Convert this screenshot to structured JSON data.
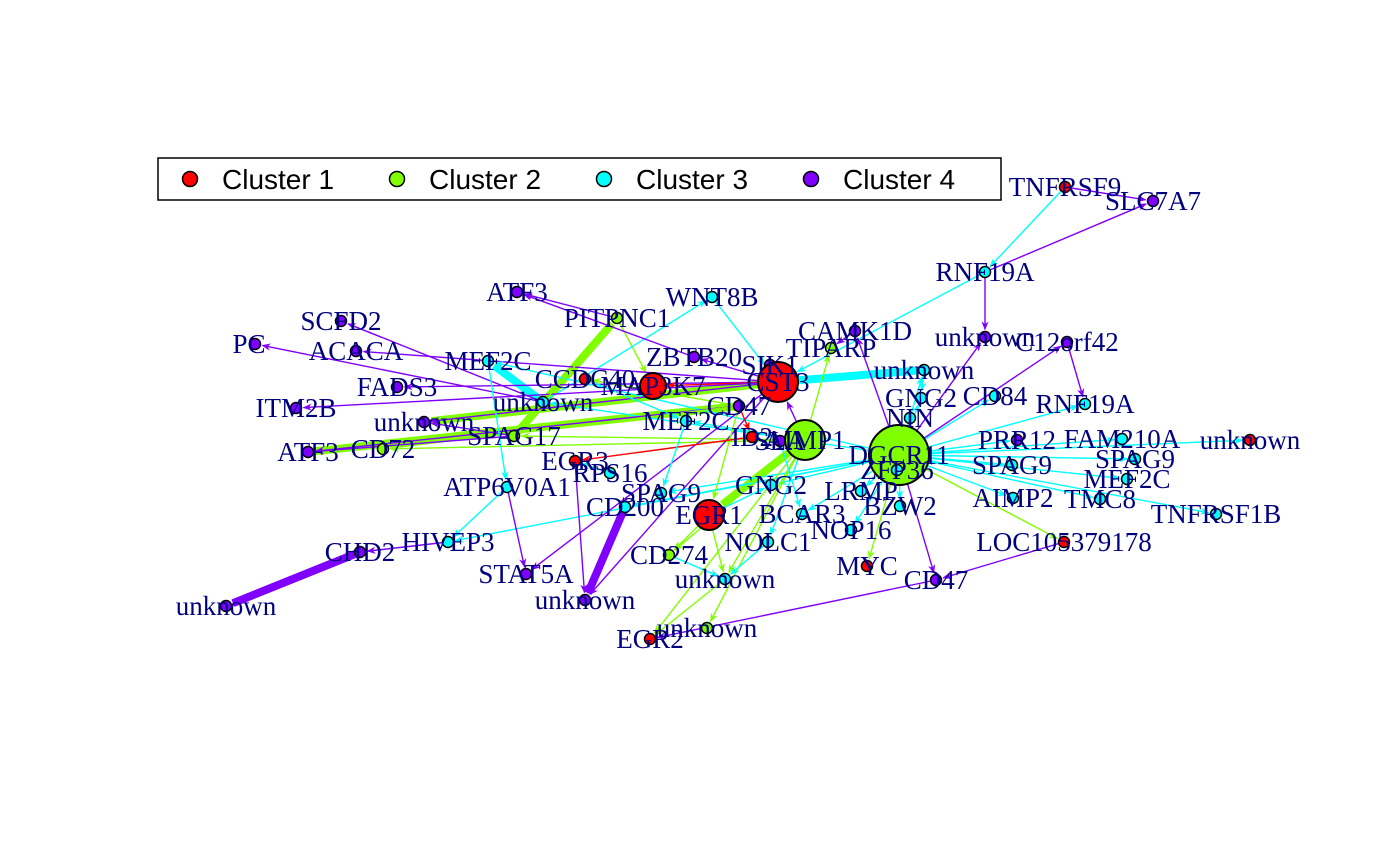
{
  "colors": {
    "cluster1": "#ff0000",
    "cluster2": "#80ff00",
    "cluster3": "#00ffff",
    "cluster4": "#8000ff",
    "label": "#00007f",
    "legend_border": "#000000"
  },
  "legend": [
    {
      "label": "Cluster 1",
      "color": "#ff0000"
    },
    {
      "label": "Cluster 2",
      "color": "#80ff00"
    },
    {
      "label": "Cluster 3",
      "color": "#00ffff"
    },
    {
      "label": "Cluster 4",
      "color": "#8000ff"
    }
  ],
  "nodes": [
    {
      "id": "TNFRSF9",
      "label": "TNFRSF9",
      "cluster": 1
    },
    {
      "id": "SLC7A7",
      "label": "SLC7A7",
      "cluster": 4
    },
    {
      "id": "RNF19A_a",
      "label": "RNF19A",
      "cluster": 3
    },
    {
      "id": "ATF3_a",
      "label": "ATF3",
      "cluster": 4
    },
    {
      "id": "WNT8B",
      "label": "WNT8B",
      "cluster": 3
    },
    {
      "id": "PITPNC1",
      "label": "PITPNC1",
      "cluster": 2
    },
    {
      "id": "SCFD2",
      "label": "SCFD2",
      "cluster": 4
    },
    {
      "id": "PCA",
      "label": "PC",
      "cluster": 4
    },
    {
      "id": "ACACA",
      "label": "ACACA",
      "cluster": 4
    },
    {
      "id": "CAMK1D",
      "label": "CAMK1D",
      "cluster": 4
    },
    {
      "id": "unknown_a",
      "label": "unknown",
      "cluster": 4
    },
    {
      "id": "C12orf42",
      "label": "C12orf42",
      "cluster": 4
    },
    {
      "id": "MEF2C_a",
      "label": "MEF2C",
      "cluster": 3
    },
    {
      "id": "ZBTB20",
      "label": "ZBTB20",
      "cluster": 4
    },
    {
      "id": "SIK1",
      "label": "SIK1",
      "cluster": 4
    },
    {
      "id": "TIPARP",
      "label": "TIPARP",
      "cluster": 2
    },
    {
      "id": "CCDC40",
      "label": "CCDC40",
      "cluster": 1
    },
    {
      "id": "MAP3K7",
      "label": "MAP3K7",
      "cluster": 1
    },
    {
      "id": "CST3",
      "label": "CST3",
      "cluster": 1
    },
    {
      "id": "unknown_b",
      "label": "unknown",
      "cluster": 3
    },
    {
      "id": "FADS3",
      "label": "FADS3",
      "cluster": 4
    },
    {
      "id": "unknown_c",
      "label": "unknown",
      "cluster": 3
    },
    {
      "id": "GNG2_a",
      "label": "GNG2",
      "cluster": 3
    },
    {
      "id": "CD84",
      "label": "CD84",
      "cluster": 3
    },
    {
      "id": "RNF19A_b",
      "label": "RNF19A",
      "cluster": 3
    },
    {
      "id": "ITM2B",
      "label": "ITM2B",
      "cluster": 4
    },
    {
      "id": "unknown_d",
      "label": "unknown",
      "cluster": 4
    },
    {
      "id": "MEF2C_b",
      "label": "MEF2C",
      "cluster": 3
    },
    {
      "id": "CD47_a",
      "label": "CD47",
      "cluster": 4
    },
    {
      "id": "NIN",
      "label": "NIN",
      "cluster": 3
    },
    {
      "id": "SPAG17",
      "label": "SPAG17",
      "cluster": 2
    },
    {
      "id": "ID2",
      "label": "ID2",
      "cluster": 1
    },
    {
      "id": "SLA",
      "label": "SLA",
      "cluster": 4
    },
    {
      "id": "AIMP1",
      "label": "AIMP1",
      "cluster": 2
    },
    {
      "id": "DGCR11",
      "label": "DGCR11",
      "cluster": 2
    },
    {
      "id": "ATF3_b",
      "label": "ATF3",
      "cluster": 4
    },
    {
      "id": "CD72",
      "label": "CD72",
      "cluster": 2
    },
    {
      "id": "PRR12",
      "label": "PRR12",
      "cluster": 4
    },
    {
      "id": "FAM210A",
      "label": "FAM210A",
      "cluster": 3
    },
    {
      "id": "unknown_e",
      "label": "unknown",
      "cluster": 1
    },
    {
      "id": "EGR3",
      "label": "EGR3",
      "cluster": 1
    },
    {
      "id": "RPS16",
      "label": "RPS16",
      "cluster": 3
    },
    {
      "id": "ZFP36",
      "label": "ZFP36",
      "cluster": 3
    },
    {
      "id": "SPAG9_a",
      "label": "SPAG9",
      "cluster": 3
    },
    {
      "id": "SPAG9_b",
      "label": "SPAG9",
      "cluster": 3
    },
    {
      "id": "ATP6V0A1",
      "label": "ATP6V0A1",
      "cluster": 3
    },
    {
      "id": "SPAG9_c",
      "label": "SPAG9",
      "cluster": 3
    },
    {
      "id": "GNG2_b",
      "label": "GNG2",
      "cluster": 3
    },
    {
      "id": "LRMP",
      "label": "LRMP",
      "cluster": 3
    },
    {
      "id": "MEF2C_c",
      "label": "MEF2C",
      "cluster": 3
    },
    {
      "id": "CD200",
      "label": "CD200",
      "cluster": 3
    },
    {
      "id": "EGR1",
      "label": "EGR1",
      "cluster": 1
    },
    {
      "id": "BCAR3",
      "label": "BCAR3",
      "cluster": 3
    },
    {
      "id": "BZW2",
      "label": "BZW2",
      "cluster": 3
    },
    {
      "id": "AIMP2",
      "label": "AIMP2",
      "cluster": 3
    },
    {
      "id": "TMC8",
      "label": "TMC8",
      "cluster": 3
    },
    {
      "id": "TNFRSF1B",
      "label": "TNFRSF1B",
      "cluster": 3
    },
    {
      "id": "HIVEP3",
      "label": "HIVEP3",
      "cluster": 3
    },
    {
      "id": "NOP16",
      "label": "NOP16",
      "cluster": 3
    },
    {
      "id": "NOLC1",
      "label": "NOLC1",
      "cluster": 3
    },
    {
      "id": "LOC105379178",
      "label": "LOC105379178",
      "cluster": 1
    },
    {
      "id": "CHD2",
      "label": "CHD2",
      "cluster": 4
    },
    {
      "id": "CD274",
      "label": "CD274",
      "cluster": 2
    },
    {
      "id": "MYC",
      "label": "MYC",
      "cluster": 1
    },
    {
      "id": "STAT5A",
      "label": "STAT5A",
      "cluster": 4
    },
    {
      "id": "unknown_f",
      "label": "unknown",
      "cluster": 3
    },
    {
      "id": "CD47_b",
      "label": "CD47",
      "cluster": 4
    },
    {
      "id": "unknown_g",
      "label": "unknown",
      "cluster": 4
    },
    {
      "id": "unknown_h",
      "label": "unknown",
      "cluster": 4
    },
    {
      "id": "unknown_i",
      "label": "unknown",
      "cluster": 2
    },
    {
      "id": "EGR2",
      "label": "EGR2",
      "cluster": 1
    }
  ],
  "edges": [
    {
      "from": "TNFRSF9",
      "to": "RNF19A_a",
      "cluster": 3
    },
    {
      "from": "RNF19A_a",
      "to": "SLC7A7",
      "cluster": 4
    },
    {
      "from": "RNF19A_a",
      "to": "unknown_a",
      "cluster": 4
    },
    {
      "from": "C12orf42",
      "to": "RNF19A_b",
      "cluster": 4
    },
    {
      "from": "RNF19A_a",
      "to": "CST3",
      "cluster": 3
    },
    {
      "from": "PITPNC1",
      "to": "ATF3_a",
      "cluster": 4
    },
    {
      "from": "PITPNC1",
      "to": "MAP3K7",
      "cluster": 2
    },
    {
      "from": "WNT8B",
      "to": "CST3",
      "cluster": 3
    },
    {
      "from": "unknown_b",
      "to": "WNT8B",
      "cluster": 3
    },
    {
      "from": "unknown_b",
      "to": "SCFD2",
      "cluster": 4
    },
    {
      "from": "CST3",
      "to": "ACACA",
      "cluster": 4
    },
    {
      "from": "unknown_b",
      "to": "PCA",
      "cluster": 4
    },
    {
      "from": "CST3",
      "to": "FADS3",
      "cluster": 4
    },
    {
      "from": "DGCR11",
      "to": "unknown_b",
      "cluster": 3
    },
    {
      "from": "DGCR11",
      "to": "MEF2C_a",
      "cluster": 3
    },
    {
      "from": "DGCR11",
      "to": "CAMK1D",
      "cluster": 4
    },
    {
      "from": "DGCR11",
      "to": "unknown_a",
      "cluster": 4
    },
    {
      "from": "DGCR11",
      "to": "C12orf42",
      "cluster": 4
    },
    {
      "from": "DGCR11",
      "to": "unknown_c",
      "cluster": 3
    },
    {
      "from": "DGCR11",
      "to": "GNG2_a",
      "cluster": 3
    },
    {
      "from": "DGCR11",
      "to": "CD84",
      "cluster": 3
    },
    {
      "from": "DGCR11",
      "to": "RNF19A_b",
      "cluster": 3
    },
    {
      "from": "DGCR11",
      "to": "NIN",
      "cluster": 3
    },
    {
      "from": "DGCR11",
      "to": "PRR12",
      "cluster": 3
    },
    {
      "from": "DGCR11",
      "to": "FAM210A",
      "cluster": 3
    },
    {
      "from": "DGCR11",
      "to": "unknown_e",
      "cluster": 3
    },
    {
      "from": "DGCR11",
      "to": "SPAG9_b",
      "cluster": 3
    },
    {
      "from": "DGCR11",
      "to": "SPAG9_c",
      "cluster": 3
    },
    {
      "from": "DGCR11",
      "to": "MEF2C_c",
      "cluster": 3
    },
    {
      "from": "DGCR11",
      "to": "TMC8",
      "cluster": 3
    },
    {
      "from": "DGCR11",
      "to": "TNFRSF1B",
      "cluster": 3
    },
    {
      "from": "DGCR11",
      "to": "AIMP2",
      "cluster": 3
    },
    {
      "from": "DGCR11",
      "to": "LOC105379178",
      "cluster": 2
    },
    {
      "from": "DGCR11",
      "to": "CD47_b",
      "cluster": 4
    },
    {
      "from": "DGCR11",
      "to": "BZW2",
      "cluster": 3
    },
    {
      "from": "DGCR11",
      "to": "LRMP",
      "cluster": 3
    },
    {
      "from": "DGCR11",
      "to": "GNG2_b",
      "cluster": 3
    },
    {
      "from": "DGCR11",
      "to": "BCAR3",
      "cluster": 3
    },
    {
      "from": "DGCR11",
      "to": "NOP16",
      "cluster": 3
    },
    {
      "from": "DGCR11",
      "to": "ZFP36",
      "cluster": 3
    },
    {
      "from": "DGCR11",
      "to": "SPAG9_a",
      "cluster": 3
    },
    {
      "from": "DGCR11",
      "to": "CD200",
      "cluster": 3
    },
    {
      "from": "DGCR11",
      "to": "HIVEP3",
      "cluster": 3
    },
    {
      "from": "DGCR11",
      "to": "MYC",
      "cluster": 2
    },
    {
      "from": "AIMP1",
      "to": "TIPARP",
      "cluster": 2
    },
    {
      "from": "AIMP1",
      "to": "CD274",
      "cluster": 2
    },
    {
      "from": "AIMP1",
      "to": "unknown_f",
      "cluster": 2
    },
    {
      "from": "AIMP1",
      "to": "unknown_i",
      "cluster": 2
    },
    {
      "from": "AIMP1",
      "to": "EGR2",
      "cluster": 2
    },
    {
      "from": "AIMP1",
      "to": "SPAG17",
      "cluster": 2
    },
    {
      "from": "AIMP1",
      "to": "CD72",
      "cluster": 2
    },
    {
      "from": "AIMP1",
      "to": "MEF2C_b",
      "cluster": 3
    },
    {
      "from": "AIMP1",
      "to": "NOLC1",
      "cluster": 3
    },
    {
      "from": "AIMP1",
      "to": "CST3",
      "cluster": 4
    },
    {
      "from": "CST3",
      "to": "SIK1",
      "cluster": 4
    },
    {
      "from": "CST3",
      "to": "MAP3K7",
      "cluster": 1
    },
    {
      "from": "CST3",
      "to": "ZBTB20",
      "cluster": 4
    },
    {
      "from": "CST3",
      "to": "unknown_d",
      "cluster": 4
    },
    {
      "from": "CST3",
      "to": "ITM2B",
      "cluster": 4
    },
    {
      "from": "CST3",
      "to": "STAT5A",
      "cluster": 4
    },
    {
      "from": "CST3",
      "to": "unknown_g",
      "cluster": 4
    },
    {
      "from": "CD47_a",
      "to": "ATF3_b",
      "cluster": 4
    },
    {
      "from": "CD47_a",
      "to": "CD72",
      "cluster": 2
    },
    {
      "from": "CD47_a",
      "to": "CCDC40",
      "cluster": 2
    },
    {
      "from": "CD47_a",
      "to": "EGR1",
      "cluster": 2
    },
    {
      "from": "CD47_a",
      "to": "ID2",
      "cluster": 1
    },
    {
      "from": "SPAG17",
      "to": "unknown_d",
      "cluster": 4
    },
    {
      "from": "SPAG17",
      "to": "PITPNC1",
      "cluster": 2
    },
    {
      "from": "SPAG17",
      "to": "ATF3_b",
      "cluster": 4
    },
    {
      "from": "MEF2C_a",
      "to": "ATP6V0A1",
      "cluster": 3
    },
    {
      "from": "ATP6V0A1",
      "to": "STAT5A",
      "cluster": 4
    },
    {
      "from": "ATP6V0A1",
      "to": "HIVEP3",
      "cluster": 3
    },
    {
      "from": "HIVEP3",
      "to": "CHD2",
      "cluster": 4
    },
    {
      "from": "CHD2",
      "to": "unknown_h",
      "cluster": 4
    },
    {
      "from": "EGR3",
      "to": "unknown_g",
      "cluster": 4
    },
    {
      "from": "EGR1",
      "to": "unknown_f",
      "cluster": 2
    },
    {
      "from": "EGR1",
      "to": "CD274",
      "cluster": 2
    },
    {
      "from": "EGR1",
      "to": "GNG2_b",
      "cluster": 3
    },
    {
      "from": "SLA",
      "to": "BCAR3",
      "cluster": 3
    },
    {
      "from": "ID2",
      "to": "EGR3",
      "cluster": 1
    },
    {
      "from": "RPS16",
      "to": "EGR3",
      "cluster": 3
    },
    {
      "from": "CD200",
      "to": "unknown_g",
      "cluster": 4
    },
    {
      "from": "unknown_c",
      "to": "GNG2_a",
      "cluster": 3
    },
    {
      "from": "LOC105379178",
      "to": "CD47_b",
      "cluster": 4
    },
    {
      "from": "CD47_b",
      "to": "EGR2",
      "cluster": 4
    },
    {
      "from": "NOLC1",
      "to": "unknown_f",
      "cluster": 3
    },
    {
      "from": "CD274",
      "to": "unknown_f",
      "cluster": 3
    },
    {
      "from": "unknown_f",
      "to": "EGR2",
      "cluster": 2
    },
    {
      "from": "TNFRSF9",
      "to": "SLC7A7",
      "cluster": 4
    },
    {
      "from": "CAMK1D",
      "to": "TIPARP",
      "cluster": 4
    },
    {
      "from": "ZBTB20",
      "to": "ATF3_a",
      "cluster": 4
    },
    {
      "from": "CCDC40",
      "to": "MEF2C_b",
      "cluster": 3
    },
    {
      "from": "MEF2C_b",
      "to": "SPAG9_a",
      "cluster": 3
    }
  ],
  "thick_edges": [
    {
      "from": "CD47_a",
      "to": "ATF3_b",
      "cluster": 2
    },
    {
      "from": "CST3",
      "to": "unknown_d",
      "cluster": 2
    },
    {
      "from": "SPAG17",
      "to": "PITPNC1",
      "cluster": 2
    },
    {
      "from": "AIMP1",
      "to": "EGR1",
      "cluster": 2
    },
    {
      "from": "unknown_b",
      "to": "MEF2C_a",
      "cluster": 3
    },
    {
      "from": "CST3",
      "to": "unknown_c",
      "cluster": 3
    },
    {
      "from": "CHD2",
      "to": "unknown_h",
      "cluster": 4
    },
    {
      "from": "CD200",
      "to": "unknown_g",
      "cluster": 4
    }
  ],
  "big_nodes": {
    "DGCR11": 30,
    "AIMP1": 20,
    "CST3": 20,
    "MAP3K7": 13,
    "EGR1": 15
  }
}
